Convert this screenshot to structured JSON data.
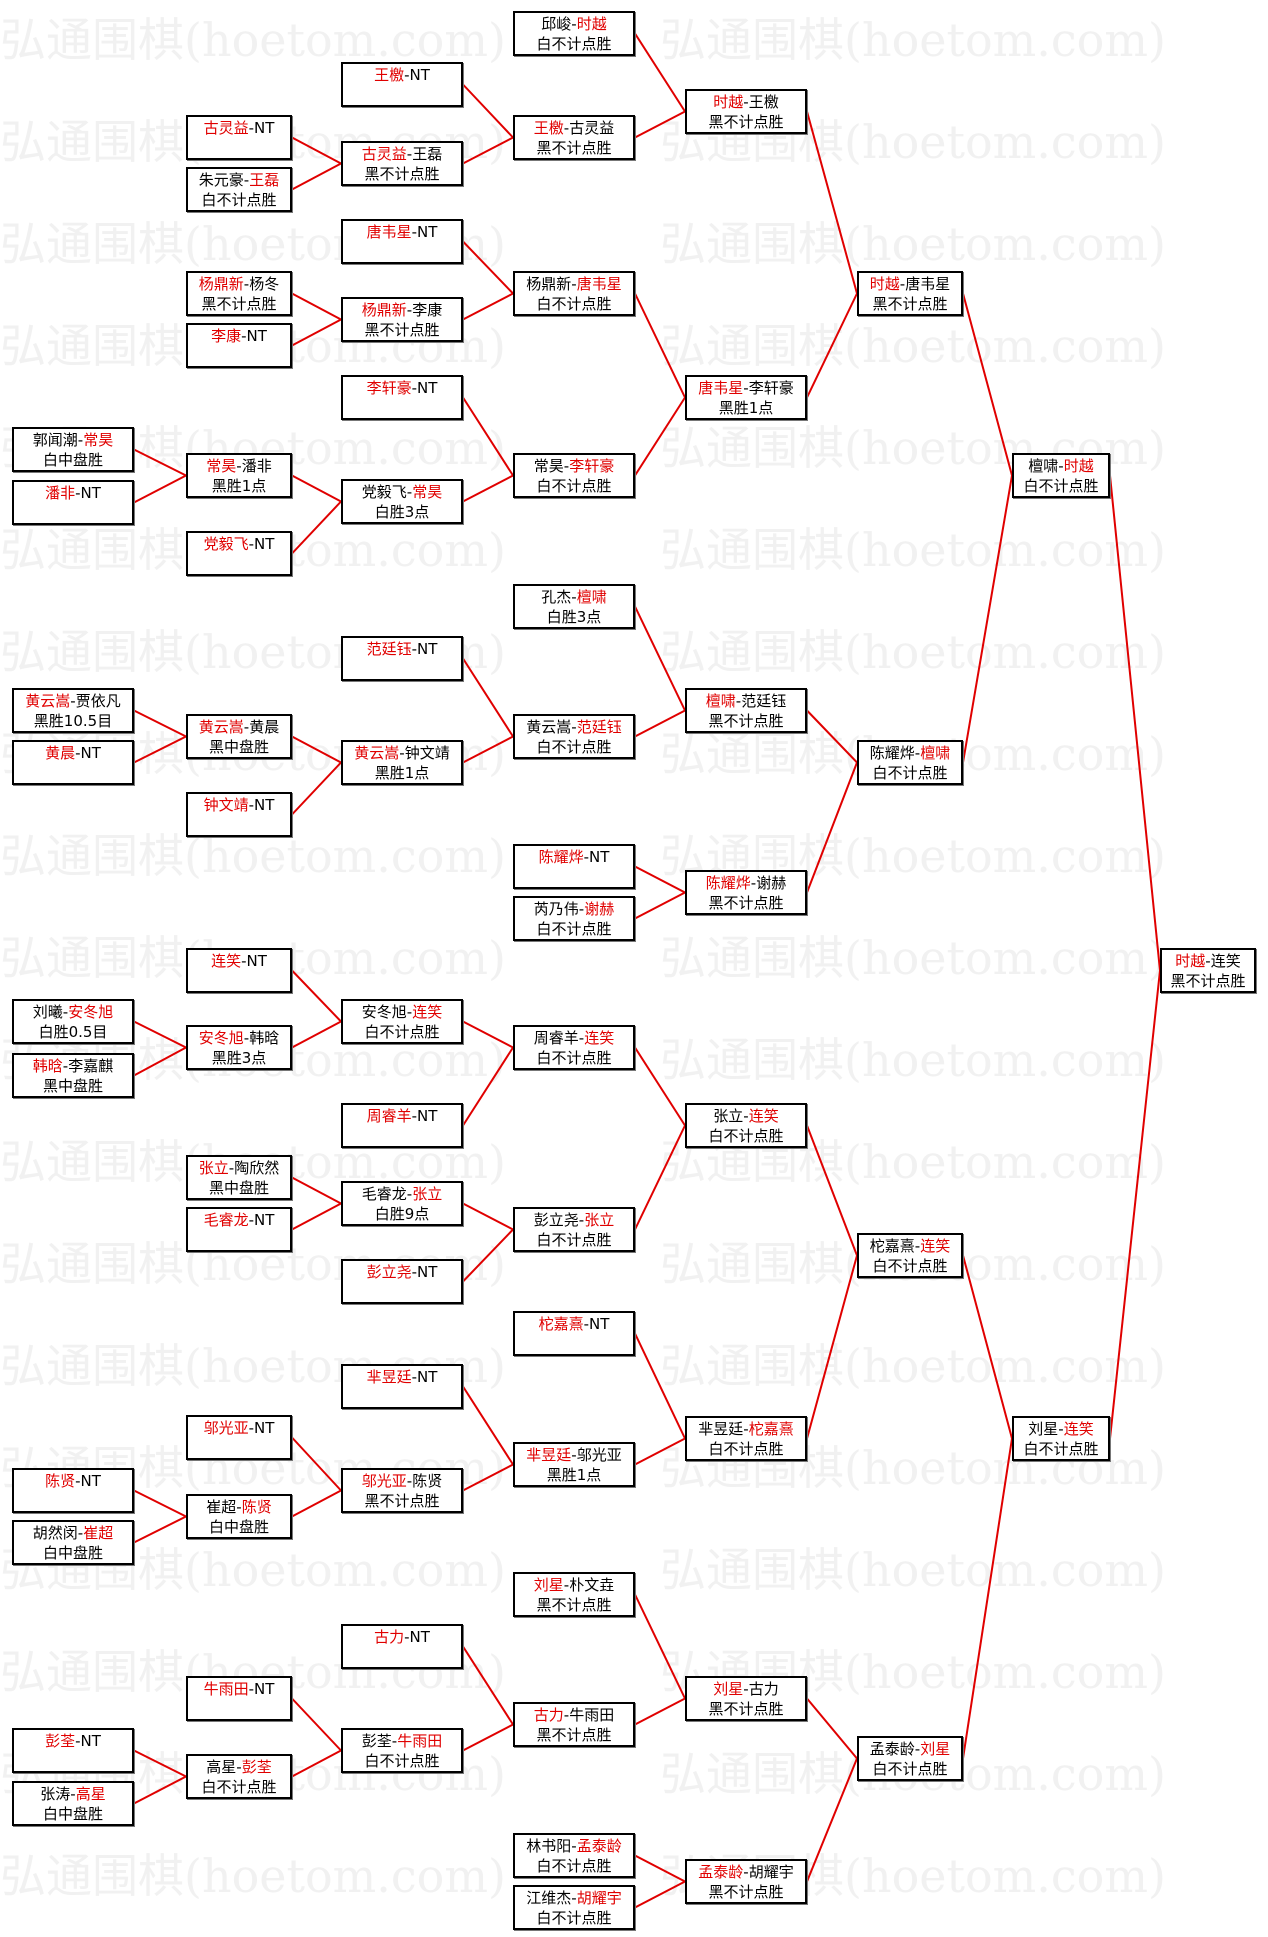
{
  "watermark": "弘通围棋(hoetom.com)",
  "colors": {
    "winner": "#e00000",
    "line": "#e00000",
    "border": "#000000"
  },
  "matches": {
    "A1": {
      "p1": "郭闻潮",
      "p2": "常昊",
      "winner": 2,
      "result": "白中盘胜"
    },
    "A2": {
      "p1": "潘非",
      "p2": "NT",
      "winner": 1,
      "result": ""
    },
    "A3": {
      "p1": "黄云嵩",
      "p2": "贾依凡",
      "winner": 1,
      "result": "黑胜10.5目"
    },
    "A4": {
      "p1": "黄晨",
      "p2": "NT",
      "winner": 1,
      "result": ""
    },
    "A5": {
      "p1": "刘曦",
      "p2": "安冬旭",
      "winner": 2,
      "result": "白胜0.5目"
    },
    "A6": {
      "p1": "韩晗",
      "p2": "李嘉麒",
      "winner": 1,
      "result": "黑中盘胜"
    },
    "A7": {
      "p1": "陈贤",
      "p2": "NT",
      "winner": 1,
      "result": ""
    },
    "A8": {
      "p1": "胡然闵",
      "p2": "崔超",
      "winner": 2,
      "result": "白中盘胜"
    },
    "A9": {
      "p1": "彭荃",
      "p2": "NT",
      "winner": 1,
      "result": ""
    },
    "A10": {
      "p1": "张涛",
      "p2": "高星",
      "winner": 2,
      "result": "白中盘胜"
    },
    "B1": {
      "p1": "古灵益",
      "p2": "NT",
      "winner": 1,
      "result": ""
    },
    "B2": {
      "p1": "朱元豪",
      "p2": "王磊",
      "winner": 2,
      "result": "白不计点胜"
    },
    "B3": {
      "p1": "杨鼎新",
      "p2": "杨冬",
      "winner": 1,
      "result": "黑不计点胜"
    },
    "B4": {
      "p1": "李康",
      "p2": "NT",
      "winner": 1,
      "result": ""
    },
    "B5": {
      "p1": "常昊",
      "p2": "潘非",
      "winner": 1,
      "result": "黑胜1点"
    },
    "B6": {
      "p1": "党毅飞",
      "p2": "NT",
      "winner": 1,
      "result": ""
    },
    "B7": {
      "p1": "黄云嵩",
      "p2": "黄晨",
      "winner": 1,
      "result": "黑中盘胜"
    },
    "B8": {
      "p1": "钟文靖",
      "p2": "NT",
      "winner": 1,
      "result": ""
    },
    "B9": {
      "p1": "连笑",
      "p2": "NT",
      "winner": 1,
      "result": ""
    },
    "B10": {
      "p1": "安冬旭",
      "p2": "韩晗",
      "winner": 1,
      "result": "黑胜3点"
    },
    "B11": {
      "p1": "张立",
      "p2": "陶欣然",
      "winner": 1,
      "result": "黑中盘胜"
    },
    "B12": {
      "p1": "毛睿龙",
      "p2": "NT",
      "winner": 1,
      "result": ""
    },
    "B13": {
      "p1": "邬光亚",
      "p2": "NT",
      "winner": 1,
      "result": ""
    },
    "B14": {
      "p1": "崔超",
      "p2": "陈贤",
      "winner": 2,
      "result": "白中盘胜"
    },
    "B15": {
      "p1": "牛雨田",
      "p2": "NT",
      "winner": 1,
      "result": ""
    },
    "B16": {
      "p1": "高星",
      "p2": "彭荃",
      "winner": 2,
      "result": "白不计点胜"
    },
    "C1": {
      "p1": "王檄",
      "p2": "NT",
      "winner": 1,
      "result": ""
    },
    "C2": {
      "p1": "古灵益",
      "p2": "王磊",
      "winner": 1,
      "result": "黑不计点胜"
    },
    "C3": {
      "p1": "唐韦星",
      "p2": "NT",
      "winner": 1,
      "result": ""
    },
    "C4": {
      "p1": "杨鼎新",
      "p2": "李康",
      "winner": 1,
      "result": "黑不计点胜"
    },
    "C5": {
      "p1": "李轩豪",
      "p2": "NT",
      "winner": 1,
      "result": ""
    },
    "C6": {
      "p1": "党毅飞",
      "p2": "常昊",
      "winner": 2,
      "result": "白胜3点"
    },
    "C7": {
      "p1": "范廷钰",
      "p2": "NT",
      "winner": 1,
      "result": ""
    },
    "C8": {
      "p1": "黄云嵩",
      "p2": "钟文靖",
      "winner": 1,
      "result": "黑胜1点"
    },
    "C9": {
      "p1": "安冬旭",
      "p2": "连笑",
      "winner": 2,
      "result": "白不计点胜"
    },
    "C10": {
      "p1": "周睿羊",
      "p2": "NT",
      "winner": 1,
      "result": ""
    },
    "C11": {
      "p1": "毛睿龙",
      "p2": "张立",
      "winner": 2,
      "result": "白胜9点"
    },
    "C12": {
      "p1": "彭立尧",
      "p2": "NT",
      "winner": 1,
      "result": ""
    },
    "C13": {
      "p1": "芈昱廷",
      "p2": "NT",
      "winner": 1,
      "result": ""
    },
    "C14": {
      "p1": "邬光亚",
      "p2": "陈贤",
      "winner": 1,
      "result": "黑不计点胜"
    },
    "C15": {
      "p1": "古力",
      "p2": "NT",
      "winner": 1,
      "result": ""
    },
    "C16": {
      "p1": "彭荃",
      "p2": "牛雨田",
      "winner": 2,
      "result": "白不计点胜"
    },
    "D1": {
      "p1": "邱峻",
      "p2": "时越",
      "winner": 2,
      "result": "白不计点胜"
    },
    "D2": {
      "p1": "王檄",
      "p2": "古灵益",
      "winner": 1,
      "result": "黑不计点胜"
    },
    "D3": {
      "p1": "杨鼎新",
      "p2": "唐韦星",
      "winner": 2,
      "result": "白不计点胜"
    },
    "D4": {
      "p1": "常昊",
      "p2": "李轩豪",
      "winner": 2,
      "result": "白不计点胜"
    },
    "D5": {
      "p1": "孔杰",
      "p2": "檀啸",
      "winner": 2,
      "result": "白胜3点"
    },
    "D6": {
      "p1": "黄云嵩",
      "p2": "范廷钰",
      "winner": 2,
      "result": "白不计点胜"
    },
    "D7": {
      "p1": "陈耀烨",
      "p2": "NT",
      "winner": 1,
      "result": ""
    },
    "D8": {
      "p1": "芮乃伟",
      "p2": "谢赫",
      "winner": 2,
      "result": "白不计点胜"
    },
    "D9": {
      "p1": "周睿羊",
      "p2": "连笑",
      "winner": 2,
      "result": "白不计点胜"
    },
    "D10": {
      "p1": "彭立尧",
      "p2": "张立",
      "winner": 2,
      "result": "白不计点胜"
    },
    "D11": {
      "p1": "柁嘉熹",
      "p2": "NT",
      "winner": 1,
      "result": ""
    },
    "D12": {
      "p1": "芈昱廷",
      "p2": "邬光亚",
      "winner": 1,
      "result": "黑胜1点"
    },
    "D13": {
      "p1": "刘星",
      "p2": "朴文垚",
      "winner": 1,
      "result": "黑不计点胜"
    },
    "D14": {
      "p1": "古力",
      "p2": "牛雨田",
      "winner": 1,
      "result": "黑不计点胜"
    },
    "D15": {
      "p1": "林书阳",
      "p2": "孟泰龄",
      "winner": 2,
      "result": "白不计点胜"
    },
    "D16": {
      "p1": "江维杰",
      "p2": "胡耀宇",
      "winner": 2,
      "result": "白不计点胜"
    },
    "E1": {
      "p1": "时越",
      "p2": "王檄",
      "winner": 1,
      "result": "黑不计点胜"
    },
    "E2": {
      "p1": "唐韦星",
      "p2": "李轩豪",
      "winner": 1,
      "result": "黑胜1点"
    },
    "E3": {
      "p1": "檀啸",
      "p2": "范廷钰",
      "winner": 1,
      "result": "黑不计点胜"
    },
    "E4": {
      "p1": "陈耀烨",
      "p2": "谢赫",
      "winner": 1,
      "result": "黑不计点胜"
    },
    "E5": {
      "p1": "张立",
      "p2": "连笑",
      "winner": 2,
      "result": "白不计点胜"
    },
    "E6": {
      "p1": "芈昱廷",
      "p2": "柁嘉熹",
      "winner": 2,
      "result": "白不计点胜"
    },
    "E7": {
      "p1": "刘星",
      "p2": "古力",
      "winner": 1,
      "result": "黑不计点胜"
    },
    "E8": {
      "p1": "孟泰龄",
      "p2": "胡耀宇",
      "winner": 1,
      "result": "黑不计点胜"
    },
    "F1": {
      "p1": "时越",
      "p2": "唐韦星",
      "winner": 1,
      "result": "黑不计点胜"
    },
    "F2": {
      "p1": "陈耀烨",
      "p2": "檀啸",
      "winner": 2,
      "result": "白不计点胜"
    },
    "F3": {
      "p1": "柁嘉熹",
      "p2": "连笑",
      "winner": 2,
      "result": "白不计点胜"
    },
    "F4": {
      "p1": "孟泰龄",
      "p2": "刘星",
      "winner": 2,
      "result": "白不计点胜"
    },
    "G1": {
      "p1": "檀啸",
      "p2": "时越",
      "winner": 2,
      "result": "白不计点胜"
    },
    "G2": {
      "p1": "刘星",
      "p2": "连笑",
      "winner": 2,
      "result": "白不计点胜"
    },
    "H1": {
      "p1": "时越",
      "p2": "连笑",
      "winner": 1,
      "result": "黑不计点胜"
    }
  }
}
